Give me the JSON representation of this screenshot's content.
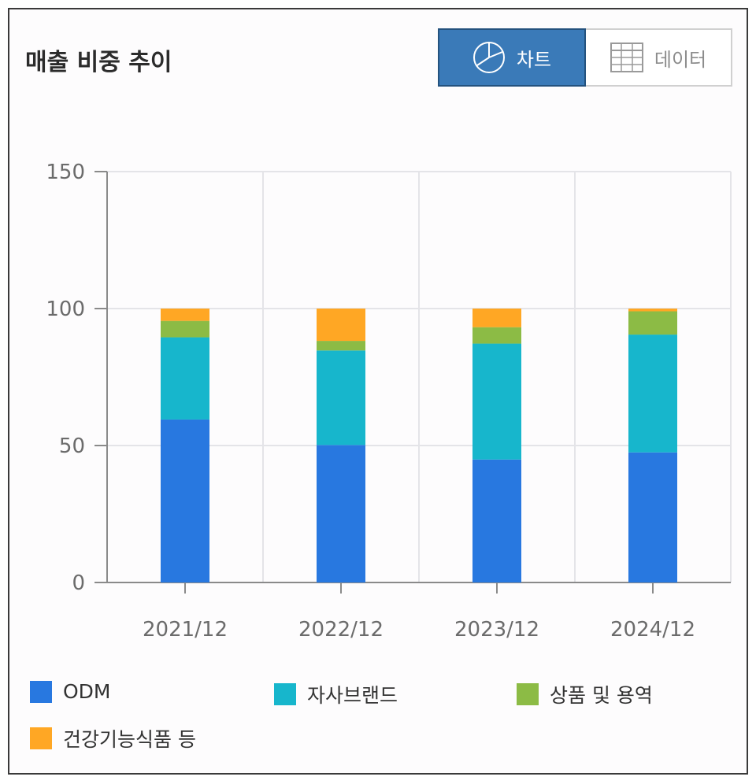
{
  "title": "매출 비중 추이",
  "toggle": {
    "chart_label": "차트",
    "data_label": "데이터",
    "chart_icon": "pie-chart-icon",
    "data_icon": "table-grid-icon"
  },
  "colors": {
    "ODM": "#2878e0",
    "자사브랜드": "#17b6cc",
    "상품 및 용역": "#8cbb45",
    "건강기능식품 등": "#ffa724"
  },
  "chart_data": {
    "type": "bar",
    "stacked": true,
    "categories": [
      "2021/12",
      "2022/12",
      "2023/12",
      "2024/12"
    ],
    "series": [
      {
        "name": "ODM",
        "values": [
          59.5,
          50.2,
          44.9,
          47.5
        ]
      },
      {
        "name": "자사브랜드",
        "values": [
          30.0,
          34.5,
          42.3,
          43.0
        ]
      },
      {
        "name": "상품 및 용역",
        "values": [
          6.0,
          3.5,
          6.0,
          8.5
        ]
      },
      {
        "name": "건강기능식품 등",
        "values": [
          4.5,
          11.8,
          6.8,
          1.0
        ]
      }
    ],
    "yticks": [
      "0",
      "50",
      "100",
      "150"
    ],
    "ylim": [
      0,
      150
    ],
    "grid": true,
    "legend_position": "bottom"
  }
}
